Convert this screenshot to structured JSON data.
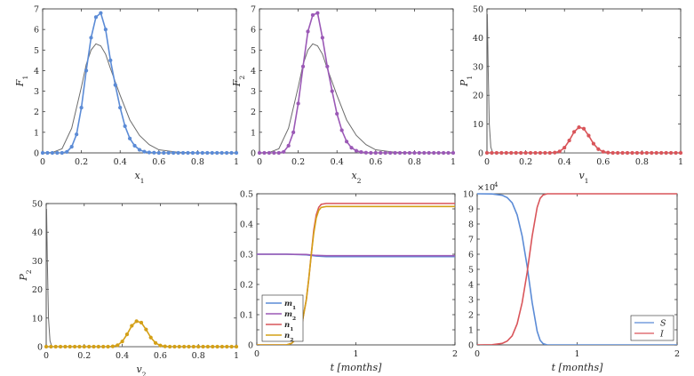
{
  "colors": {
    "gray": "#6b6b6b",
    "blue": "#5b8bd6",
    "purple": "#9b59b6",
    "red": "#d9555a",
    "gold": "#d4a017",
    "axis": "#262626"
  },
  "chart_data": [
    {
      "id": "F1",
      "type": "line",
      "xlabel": "x",
      "xlabel_sub": "1",
      "ylabel": "F",
      "ylabel_sub": "1",
      "xlim": [
        0,
        1
      ],
      "ylim": [
        0,
        7
      ],
      "xticks": [
        0,
        0.2,
        0.4,
        0.6,
        0.8,
        1
      ],
      "xtick_labels": [
        "0",
        "0.2",
        "0.4",
        "0.6",
        "0.8",
        "1"
      ],
      "yticks": [
        0,
        1,
        2,
        3,
        4,
        5,
        6,
        7
      ],
      "ytick_labels": [
        "0",
        "1",
        "2",
        "3",
        "4",
        "5",
        "6",
        "7"
      ],
      "series": [
        {
          "name": "reference",
          "color": "#6b6b6b",
          "markers": false,
          "x": [
            0,
            0.05,
            0.1,
            0.15,
            0.2,
            0.225,
            0.25,
            0.275,
            0.3,
            0.325,
            0.35,
            0.4,
            0.45,
            0.5,
            0.55,
            0.6,
            0.7,
            0.8,
            1
          ],
          "y": [
            0,
            0.02,
            0.2,
            1.2,
            3.2,
            4.3,
            5.0,
            5.3,
            5.2,
            4.8,
            4.1,
            2.8,
            1.6,
            0.85,
            0.4,
            0.15,
            0.03,
            0,
            0
          ]
        },
        {
          "name": "simulated",
          "color": "#5b8bd6",
          "markers": true,
          "x": [
            0,
            0.025,
            0.05,
            0.075,
            0.1,
            0.125,
            0.15,
            0.175,
            0.2,
            0.225,
            0.25,
            0.275,
            0.3,
            0.325,
            0.35,
            0.375,
            0.4,
            0.425,
            0.45,
            0.475,
            0.5,
            0.525,
            0.55,
            0.575,
            0.6,
            0.625,
            0.65,
            0.675,
            0.7,
            0.725,
            0.75,
            0.775,
            0.8,
            0.825,
            0.85,
            0.875,
            0.9,
            0.925,
            0.95,
            0.975,
            1
          ],
          "y": [
            0,
            0,
            0,
            0,
            0,
            0.05,
            0.3,
            0.9,
            2.2,
            4.0,
            5.6,
            6.6,
            6.8,
            6.0,
            4.5,
            3.3,
            2.2,
            1.3,
            0.7,
            0.35,
            0.15,
            0.06,
            0.02,
            0.01,
            0,
            0,
            0,
            0,
            0,
            0,
            0,
            0,
            0,
            0,
            0,
            0,
            0,
            0,
            0,
            0,
            0
          ]
        }
      ]
    },
    {
      "id": "F2",
      "type": "line",
      "xlabel": "x",
      "xlabel_sub": "2",
      "ylabel": "F",
      "ylabel_sub": "2",
      "xlim": [
        0,
        1
      ],
      "ylim": [
        0,
        7
      ],
      "xticks": [
        0,
        0.2,
        0.4,
        0.6,
        0.8,
        1
      ],
      "xtick_labels": [
        "0",
        "0.2",
        "0.4",
        "0.6",
        "0.8",
        "1"
      ],
      "yticks": [
        0,
        1,
        2,
        3,
        4,
        5,
        6,
        7
      ],
      "ytick_labels": [
        "0",
        "1",
        "2",
        "3",
        "4",
        "5",
        "6",
        "7"
      ],
      "series": [
        {
          "name": "reference",
          "color": "#6b6b6b",
          "markers": false,
          "x": [
            0,
            0.05,
            0.1,
            0.15,
            0.2,
            0.225,
            0.25,
            0.275,
            0.3,
            0.325,
            0.35,
            0.4,
            0.45,
            0.5,
            0.55,
            0.6,
            0.7,
            0.8,
            1
          ],
          "y": [
            0,
            0.02,
            0.2,
            1.2,
            3.2,
            4.3,
            5.0,
            5.3,
            5.2,
            4.8,
            4.1,
            2.8,
            1.6,
            0.85,
            0.4,
            0.15,
            0.03,
            0,
            0
          ]
        },
        {
          "name": "simulated",
          "color": "#9b59b6",
          "markers": true,
          "x": [
            0,
            0.025,
            0.05,
            0.075,
            0.1,
            0.125,
            0.15,
            0.175,
            0.2,
            0.225,
            0.25,
            0.275,
            0.3,
            0.325,
            0.35,
            0.375,
            0.4,
            0.425,
            0.45,
            0.475,
            0.5,
            0.525,
            0.55,
            0.575,
            0.6,
            0.625,
            0.65,
            0.675,
            0.7,
            0.725,
            0.75,
            0.775,
            0.8,
            0.825,
            0.85,
            0.875,
            0.9,
            0.925,
            0.95,
            0.975,
            1
          ],
          "y": [
            0,
            0,
            0,
            0,
            0,
            0.05,
            0.35,
            1.0,
            2.4,
            4.2,
            5.9,
            6.7,
            6.8,
            5.6,
            4.2,
            3.0,
            1.9,
            1.1,
            0.55,
            0.25,
            0.1,
            0.04,
            0.01,
            0,
            0,
            0,
            0,
            0,
            0,
            0,
            0,
            0,
            0,
            0,
            0,
            0,
            0,
            0,
            0,
            0,
            0
          ]
        }
      ]
    },
    {
      "id": "P1",
      "type": "line",
      "xlabel": "v",
      "xlabel_sub": "1",
      "ylabel": "P",
      "ylabel_sub": "1",
      "xlim": [
        0,
        1
      ],
      "ylim": [
        0,
        50
      ],
      "xticks": [
        0,
        0.2,
        0.4,
        0.6,
        0.8,
        1
      ],
      "xtick_labels": [
        "0",
        "0.2",
        "0.4",
        "0.6",
        "0.8",
        "1"
      ],
      "yticks": [
        0,
        10,
        20,
        30,
        40,
        50
      ],
      "ytick_labels": [
        "0",
        "10",
        "20",
        "30",
        "40",
        "50"
      ],
      "series": [
        {
          "name": "reference",
          "color": "#6b6b6b",
          "markers": false,
          "x": [
            0,
            0.002,
            0.006,
            0.012,
            0.02,
            0.03,
            1
          ],
          "y": [
            48,
            48,
            30,
            10,
            2,
            0,
            0
          ]
        },
        {
          "name": "simulated",
          "color": "#d9555a",
          "markers": true,
          "x": [
            0,
            0.025,
            0.05,
            0.075,
            0.1,
            0.125,
            0.15,
            0.175,
            0.2,
            0.225,
            0.25,
            0.275,
            0.3,
            0.325,
            0.35,
            0.375,
            0.4,
            0.425,
            0.45,
            0.475,
            0.5,
            0.525,
            0.55,
            0.575,
            0.6,
            0.625,
            0.65,
            0.675,
            0.7,
            0.725,
            0.75,
            0.775,
            0.8,
            0.825,
            0.85,
            0.875,
            0.9,
            0.925,
            0.95,
            0.975,
            1
          ],
          "y": [
            0,
            0,
            0,
            0,
            0,
            0,
            0,
            0,
            0,
            0,
            0,
            0,
            0,
            0,
            0.1,
            0.5,
            1.8,
            4.3,
            7.3,
            8.9,
            8.4,
            6.0,
            3.2,
            1.3,
            0.4,
            0.1,
            0,
            0,
            0,
            0,
            0,
            0,
            0,
            0,
            0,
            0,
            0,
            0,
            0,
            0,
            0
          ]
        }
      ]
    },
    {
      "id": "P2",
      "type": "line",
      "xlabel": "v",
      "xlabel_sub": "2",
      "ylabel": "P",
      "ylabel_sub": "2",
      "xlim": [
        0,
        1
      ],
      "ylim": [
        0,
        50
      ],
      "xticks": [
        0,
        0.2,
        0.4,
        0.6,
        0.8,
        1
      ],
      "xtick_labels": [
        "0",
        "0.2",
        "0.4",
        "0.6",
        "0.8",
        "1"
      ],
      "yticks": [
        0,
        10,
        20,
        30,
        40,
        50
      ],
      "ytick_labels": [
        "0",
        "10",
        "20",
        "30",
        "40",
        "50"
      ],
      "series": [
        {
          "name": "reference",
          "color": "#6b6b6b",
          "markers": false,
          "x": [
            0,
            0.002,
            0.006,
            0.012,
            0.02,
            0.03,
            1
          ],
          "y": [
            48,
            48,
            30,
            10,
            2,
            0,
            0
          ]
        },
        {
          "name": "simulated",
          "color": "#d4a017",
          "markers": true,
          "x": [
            0,
            0.025,
            0.05,
            0.075,
            0.1,
            0.125,
            0.15,
            0.175,
            0.2,
            0.225,
            0.25,
            0.275,
            0.3,
            0.325,
            0.35,
            0.375,
            0.4,
            0.425,
            0.45,
            0.475,
            0.5,
            0.525,
            0.55,
            0.575,
            0.6,
            0.625,
            0.65,
            0.675,
            0.7,
            0.725,
            0.75,
            0.775,
            0.8,
            0.825,
            0.85,
            0.875,
            0.9,
            0.925,
            0.95,
            0.975,
            1
          ],
          "y": [
            0,
            0,
            0,
            0,
            0,
            0,
            0,
            0,
            0,
            0,
            0,
            0,
            0,
            0,
            0.1,
            0.5,
            1.8,
            4.3,
            7.3,
            8.9,
            8.4,
            6.0,
            3.2,
            1.3,
            0.4,
            0.1,
            0,
            0,
            0,
            0,
            0,
            0,
            0,
            0,
            0,
            0,
            0,
            0,
            0,
            0,
            0
          ]
        }
      ]
    },
    {
      "id": "means",
      "type": "line",
      "xlabel": "t [months]",
      "ylabel": "",
      "xlim": [
        0,
        2
      ],
      "ylim": [
        0,
        0.5
      ],
      "xticks": [
        0,
        1,
        2
      ],
      "xtick_labels": [
        "0",
        "1",
        "2"
      ],
      "yticks": [
        0,
        0.05,
        0.1,
        0.15,
        0.2,
        0.25,
        0.3,
        0.35,
        0.4,
        0.45,
        0.5
      ],
      "ytick_labels": [
        "0",
        "0.05",
        "0.1",
        "0.15",
        "0.2",
        "0.25",
        "0.3",
        "0.35",
        "0.4",
        "0.45",
        "0.5"
      ],
      "legend_position": "bottom-left",
      "series": [
        {
          "name": "m",
          "sub": "1",
          "color": "#5b8bd6",
          "x": [
            0,
            0.3,
            0.5,
            0.6,
            0.7,
            2
          ],
          "y": [
            0.3,
            0.3,
            0.298,
            0.294,
            0.292,
            0.292
          ]
        },
        {
          "name": "m",
          "sub": "2",
          "color": "#9b59b6",
          "x": [
            0,
            0.3,
            0.5,
            0.6,
            0.7,
            2
          ],
          "y": [
            0.3,
            0.3,
            0.299,
            0.296,
            0.295,
            0.295
          ]
        },
        {
          "name": "n",
          "sub": "1",
          "color": "#d9555a",
          "x": [
            0,
            0.3,
            0.35,
            0.4,
            0.45,
            0.5,
            0.525,
            0.55,
            0.575,
            0.6,
            0.625,
            0.65,
            0.7,
            2
          ],
          "y": [
            0,
            0,
            0.005,
            0.02,
            0.06,
            0.15,
            0.22,
            0.3,
            0.38,
            0.43,
            0.455,
            0.465,
            0.468,
            0.468
          ]
        },
        {
          "name": "n",
          "sub": "2",
          "color": "#d4a017",
          "x": [
            0,
            0.3,
            0.35,
            0.4,
            0.45,
            0.5,
            0.525,
            0.55,
            0.575,
            0.6,
            0.625,
            0.65,
            0.7,
            2
          ],
          "y": [
            0,
            0,
            0.005,
            0.02,
            0.06,
            0.15,
            0.22,
            0.3,
            0.37,
            0.42,
            0.445,
            0.455,
            0.458,
            0.458
          ]
        }
      ]
    },
    {
      "id": "SI",
      "type": "line",
      "xlabel": "t [months]",
      "ylabel": "",
      "xlim": [
        0,
        2
      ],
      "ylim": [
        0,
        100000
      ],
      "y_exponent": "×10",
      "y_exponent_power": "4",
      "xticks": [
        0,
        1,
        2
      ],
      "xtick_labels": [
        "0",
        "1",
        "2"
      ],
      "yticks": [
        0,
        10000,
        20000,
        30000,
        40000,
        50000,
        60000,
        70000,
        80000,
        90000,
        100000
      ],
      "ytick_labels": [
        "0",
        "1",
        "2",
        "3",
        "4",
        "5",
        "6",
        "7",
        "8",
        "9",
        "10"
      ],
      "legend_position": "bottom-right",
      "series": [
        {
          "name": "S",
          "color": "#5b8bd6",
          "x": [
            0,
            0.15,
            0.25,
            0.3,
            0.35,
            0.4,
            0.45,
            0.5,
            0.55,
            0.6,
            0.63,
            0.66,
            0.7,
            2
          ],
          "y": [
            100000,
            99900,
            99000,
            97500,
            94000,
            86000,
            72000,
            52000,
            28000,
            9000,
            3000,
            800,
            0,
            0
          ]
        },
        {
          "name": "I",
          "color": "#d9555a",
          "x": [
            0,
            0.15,
            0.25,
            0.3,
            0.35,
            0.4,
            0.45,
            0.5,
            0.55,
            0.6,
            0.63,
            0.66,
            0.7,
            2
          ],
          "y": [
            0,
            100,
            1000,
            2500,
            6000,
            14000,
            28000,
            48000,
            72000,
            91000,
            97000,
            99200,
            100000,
            100000
          ]
        }
      ]
    }
  ]
}
